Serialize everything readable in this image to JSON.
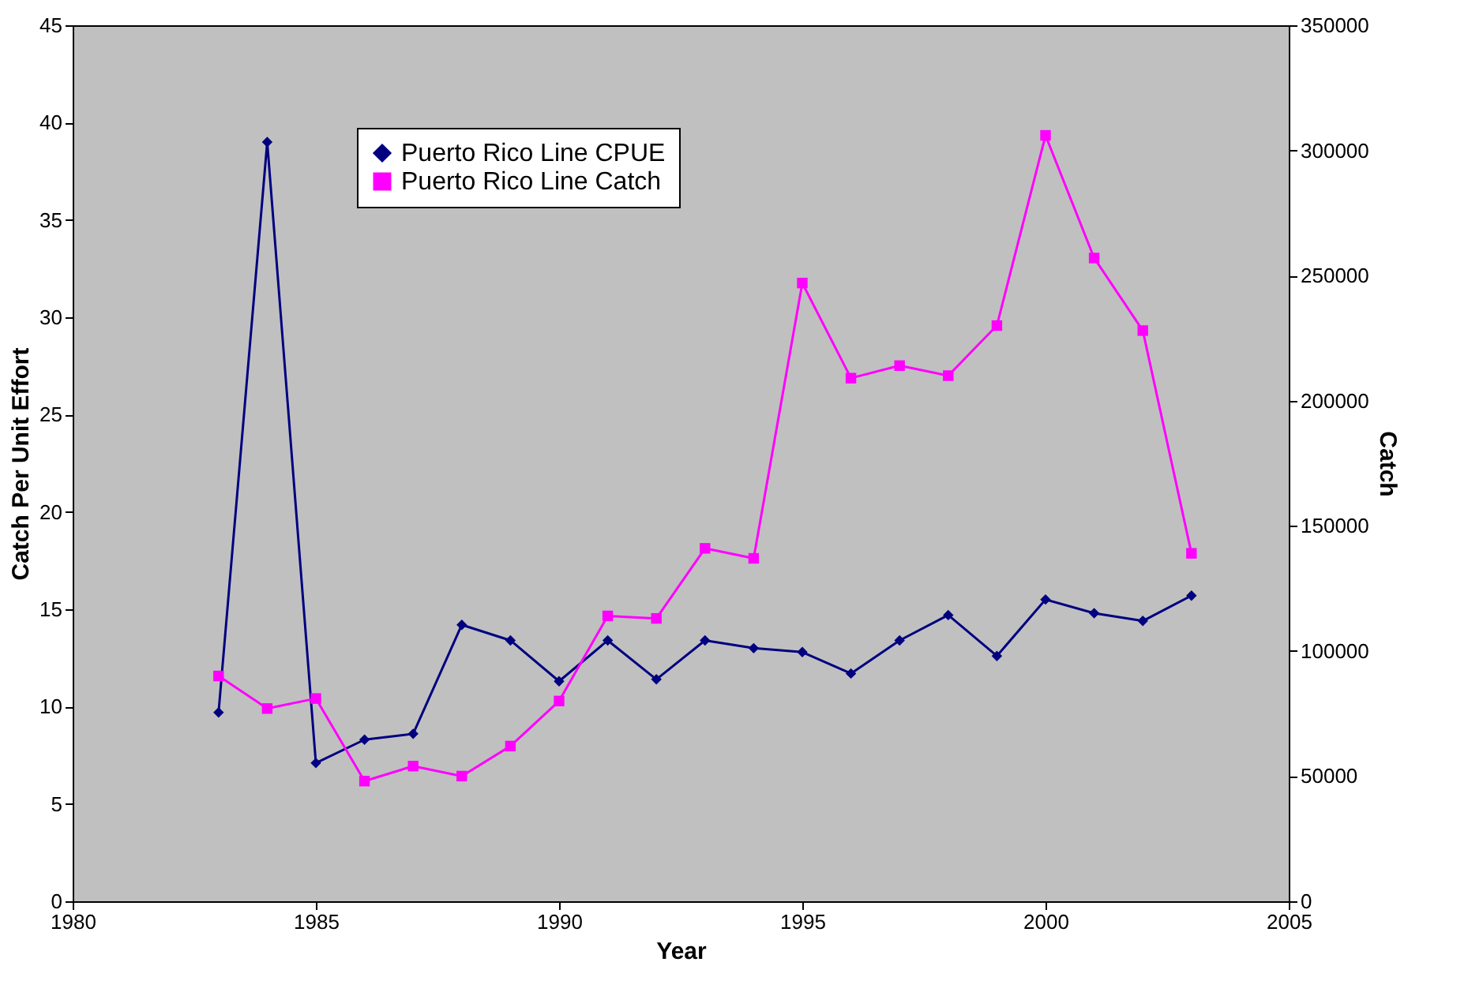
{
  "chart_data": {
    "type": "line",
    "xlabel": "Year",
    "ylabel": "Catch Per Unit Effort",
    "y2label": "Catch",
    "x": [
      1983,
      1984,
      1985,
      1986,
      1987,
      1988,
      1989,
      1990,
      1991,
      1992,
      1993,
      1994,
      1995,
      1996,
      1997,
      1998,
      1999,
      2000,
      2001,
      2002,
      2003
    ],
    "series": [
      {
        "name": "Puerto Rico Line CPUE",
        "color": "#000080",
        "marker": "diamond",
        "values": [
          9.7,
          39.0,
          7.1,
          8.3,
          8.6,
          14.2,
          13.4,
          11.3,
          13.4,
          11.4,
          13.4,
          13.0,
          12.8,
          11.7,
          13.4,
          14.7,
          12.6,
          15.5,
          14.8,
          14.4,
          15.7
        ]
      },
      {
        "name": "Puerto Rico Line Catch",
        "color": "#ff00ff",
        "marker": "square",
        "axis": "y2",
        "values": [
          90000,
          77000,
          81000,
          48000,
          54000,
          50000,
          62000,
          80000,
          114000,
          113000,
          141000,
          137000,
          247000,
          209000,
          214000,
          210000,
          230000,
          306000,
          257000,
          228000,
          139000
        ]
      }
    ],
    "xlim": [
      1980,
      2005
    ],
    "xticks": [
      1980,
      1985,
      1990,
      1995,
      2000,
      2005
    ],
    "ylim": [
      0,
      45
    ],
    "yticks": [
      0,
      5,
      10,
      15,
      20,
      25,
      30,
      35,
      40,
      45
    ],
    "y2lim": [
      0,
      350000
    ],
    "y2ticks": [
      0,
      50000,
      100000,
      150000,
      200000,
      250000,
      300000,
      350000
    ],
    "grid": false,
    "legend": "top left",
    "line_style": "solid"
  }
}
